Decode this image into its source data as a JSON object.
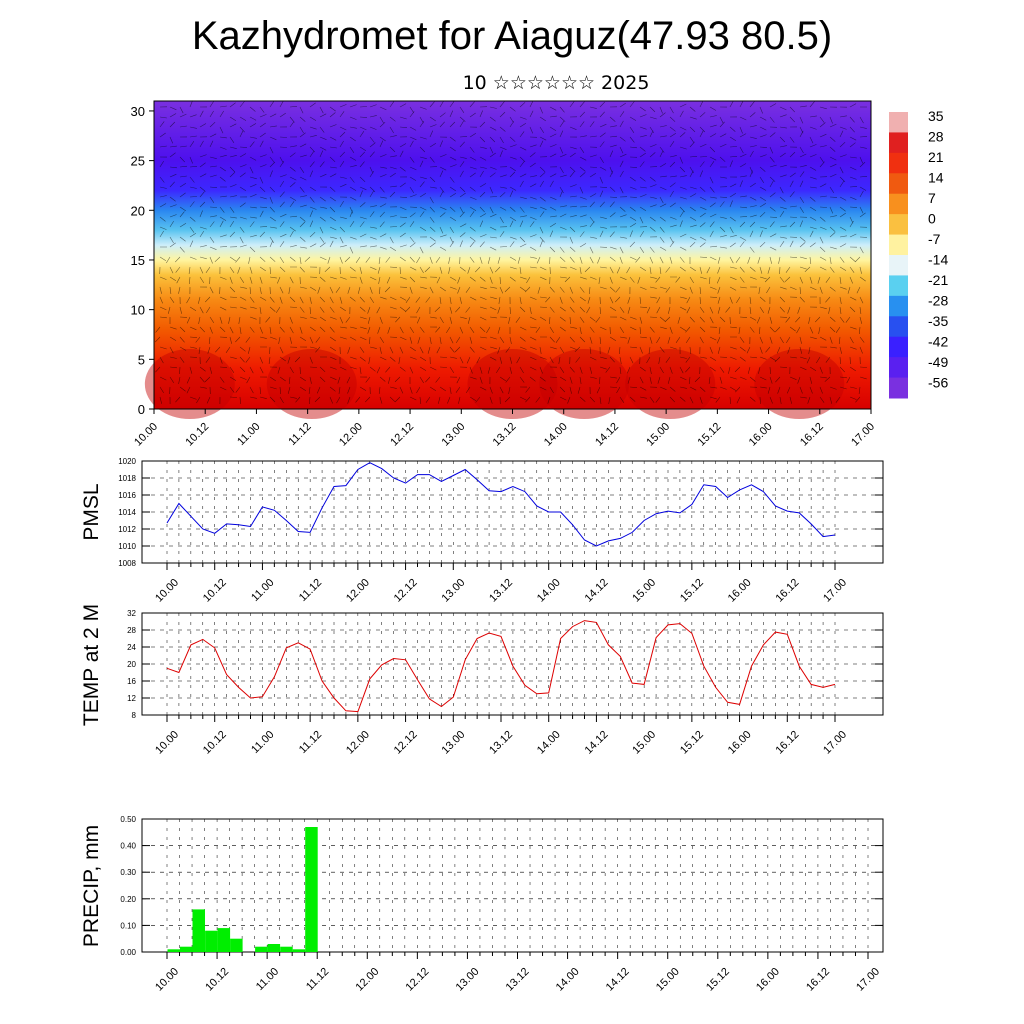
{
  "title": "Kazhydromet for Aiaguz(47.93 80.5)",
  "subtitle": "10 ☆☆☆☆☆☆ 2025",
  "time_ticks": [
    "10.00",
    "10.12",
    "11.00",
    "11.12",
    "12.00",
    "12.12",
    "13.00",
    "13.12",
    "14.00",
    "14.12",
    "15.00",
    "15.12",
    "16.00",
    "16.12",
    "17.00"
  ],
  "chart_data": [
    {
      "type": "heatmap",
      "name": "vertical-temperature-cross-section",
      "y_ticks": [
        "0",
        "5",
        "10",
        "15",
        "20",
        "25",
        "30"
      ],
      "ylim": [
        0,
        31
      ],
      "colorbar_labels": [
        "35",
        "28",
        "21",
        "14",
        "7",
        "0",
        "-7",
        "-14",
        "-21",
        "-28",
        "-35",
        "-42",
        "-49",
        "-56"
      ],
      "colorbar_colors": [
        "#f0b0b0",
        "#e02020",
        "#f03010",
        "#f05a10",
        "#f8901e",
        "#fac040",
        "#fff2a0",
        "#e8f4f8",
        "#5ad0f0",
        "#2890f0",
        "#2850f0",
        "#3a20ff",
        "#5a20f0",
        "#7a30e0"
      ],
      "profile_levels": [
        0,
        4,
        8,
        11,
        13.5,
        15,
        16.5,
        18,
        20,
        22,
        25,
        31
      ],
      "profile_colors": [
        "#d80000",
        "#ee1a00",
        "#f25a00",
        "#f78a14",
        "#fbc23c",
        "#fff5a0",
        "#cdeefa",
        "#59c3f0",
        "#2a86f0",
        "#3c28ff",
        "#4d10ee",
        "#7a30e0"
      ],
      "grid": false
    },
    {
      "type": "line",
      "ylabel": "PMSL",
      "ylim": [
        1008,
        1020
      ],
      "y_ticks": [
        "1008",
        "1010",
        "1012",
        "1014",
        "1016",
        "1018",
        "1020"
      ],
      "color": "#0000dd",
      "x_step_hours": 3,
      "values": [
        1012.7,
        1015.0,
        1013.5,
        1012.0,
        1011.5,
        1012.6,
        1012.5,
        1012.3,
        1014.6,
        1014.2,
        1013.0,
        1011.7,
        1011.6,
        1014.5,
        1017.0,
        1017.1,
        1019.0,
        1019.8,
        1019.1,
        1018.0,
        1017.4,
        1018.4,
        1018.4,
        1017.6,
        1018.3,
        1019.0,
        1017.8,
        1016.5,
        1016.4,
        1017.0,
        1016.4,
        1014.7,
        1014.0,
        1014.0,
        1012.5,
        1010.7,
        1010.0,
        1010.6,
        1010.9,
        1011.6,
        1013.0,
        1013.8,
        1014.1,
        1013.9,
        1014.9,
        1017.2,
        1017.0,
        1015.7,
        1016.6,
        1017.2,
        1016.4,
        1014.7,
        1014.1,
        1013.9,
        1012.6,
        1011.1,
        1011.3
      ]
    },
    {
      "type": "line",
      "ylabel": "TEMP at 2 M",
      "ylim": [
        8,
        32
      ],
      "y_ticks": [
        "8",
        "12",
        "16",
        "20",
        "24",
        "28",
        "32"
      ],
      "color": "#dd0000",
      "x_step_hours": 3,
      "values": [
        19,
        18,
        24.5,
        25.8,
        23.8,
        17.5,
        14.5,
        12,
        12.3,
        17,
        23.8,
        25,
        23.5,
        16,
        12,
        9,
        8.8,
        16.5,
        19.8,
        21.3,
        21,
        16.3,
        11.8,
        10,
        12.2,
        21,
        26,
        27.3,
        26.5,
        19.5,
        15,
        13,
        13.2,
        26,
        28.8,
        30.2,
        29.8,
        24.5,
        21.8,
        15.5,
        15.2,
        26.2,
        29.2,
        29.5,
        27.2,
        19.5,
        14.5,
        11,
        10.5,
        19.5,
        24.5,
        27.5,
        27,
        19.5,
        15.2,
        14.5,
        15.2
      ]
    },
    {
      "type": "bar",
      "ylabel": "PRECIP, mm",
      "ylim": [
        0,
        0.5
      ],
      "y_ticks": [
        "0.00",
        "0.10",
        "0.20",
        "0.30",
        "0.40",
        "0.50"
      ],
      "color": "#00ee00",
      "x_step_hours": 3,
      "values": [
        0.01,
        0.02,
        0.16,
        0.08,
        0.09,
        0.05,
        0,
        0.02,
        0.03,
        0.02,
        0.01,
        0.47
      ]
    }
  ]
}
